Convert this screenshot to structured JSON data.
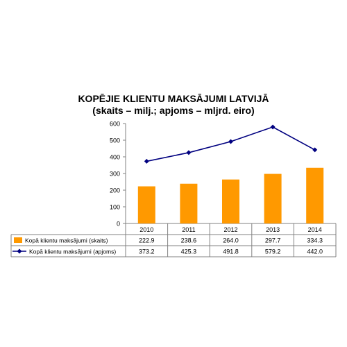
{
  "chart_data": {
    "type": "bar",
    "title": "KOPĒJIE KLIENTU MAKSĀJUMI LATVIJĀ",
    "subtitle": "(skaits – milj.; apjoms – mljrd. eiro)",
    "categories": [
      "2010",
      "2011",
      "2012",
      "2013",
      "2014"
    ],
    "series": [
      {
        "name": "Kopā klientu maksājumi (skaits)",
        "kind": "bar",
        "color": "#ff9900",
        "values": [
          222.9,
          238.6,
          264.0,
          297.7,
          334.3
        ],
        "display": [
          "222.9",
          "238.6",
          "264.0",
          "297.7",
          "334.3"
        ]
      },
      {
        "name": "Kopā klientu maksājumi (apjoms)",
        "kind": "line",
        "color": "#000080",
        "values": [
          373.2,
          425.3,
          491.8,
          579.2,
          442.0
        ],
        "display": [
          "373.2",
          "425.3",
          "491.8",
          "579.2",
          "442.0"
        ]
      }
    ],
    "yticks": [
      "0",
      "100",
      "200",
      "300",
      "400",
      "500",
      "600"
    ],
    "ylim": [
      0,
      600
    ],
    "grid": false,
    "legend": "data-table"
  }
}
